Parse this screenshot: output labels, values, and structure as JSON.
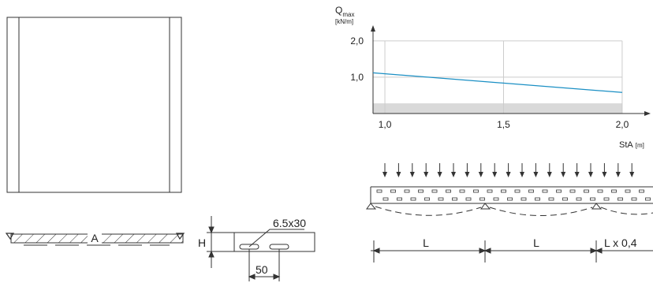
{
  "chart_data": {
    "type": "line",
    "ylabel_main": "Q",
    "ylabel_sub": "max",
    "ylabel_unit": "[kN/m]",
    "xlabel": "StA",
    "xlabel_unit": "[m]",
    "x_ticks": [
      "1,0",
      "1,5",
      "2,0"
    ],
    "y_ticks": [
      "1,0",
      "2,0"
    ],
    "xlim": [
      0.95,
      2.1
    ],
    "ylim": [
      0,
      2.3
    ],
    "grid": true,
    "series": [
      {
        "x": [
          0.95,
          2.0
        ],
        "y": [
          1.12,
          0.58
        ],
        "color": "#1a8fc4"
      }
    ],
    "shaded_band": {
      "y": [
        0,
        0.28
      ],
      "color": "#d9d9d9"
    }
  },
  "drawing": {
    "section_label": "A",
    "slot_label": "6.5x30",
    "height_label": "H",
    "pitch_label": "50",
    "span_labels": [
      "L",
      "L",
      "L x 0,4"
    ]
  },
  "colors": {
    "line": "#1a8fc4",
    "band": "#d9d9d9",
    "grid": "#cccccc",
    "ink": "#222222"
  }
}
